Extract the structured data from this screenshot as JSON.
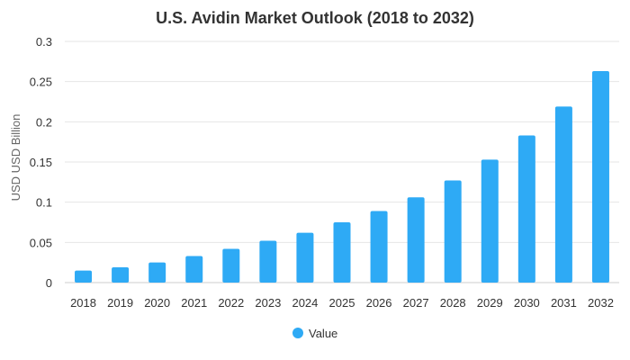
{
  "chart_data": {
    "type": "bar",
    "title": "U.S. Avidin Market Outlook (2018 to 2032)",
    "xlabel": "",
    "ylabel": "USD USD Billion",
    "categories": [
      "2018",
      "2019",
      "2020",
      "2021",
      "2022",
      "2023",
      "2024",
      "2025",
      "2026",
      "2027",
      "2028",
      "2029",
      "2030",
      "2031",
      "2032"
    ],
    "series": [
      {
        "name": "Value",
        "color": "#2eaaf5",
        "values": [
          0.015,
          0.019,
          0.025,
          0.033,
          0.042,
          0.052,
          0.062,
          0.075,
          0.089,
          0.106,
          0.127,
          0.153,
          0.183,
          0.219,
          0.263
        ]
      }
    ],
    "ylim": [
      0,
      0.3
    ],
    "yticks": [
      "0",
      "0.05",
      "0.1",
      "0.15",
      "0.2",
      "0.25",
      "0.3"
    ],
    "grid": true,
    "legend_position": "bottom-center"
  }
}
